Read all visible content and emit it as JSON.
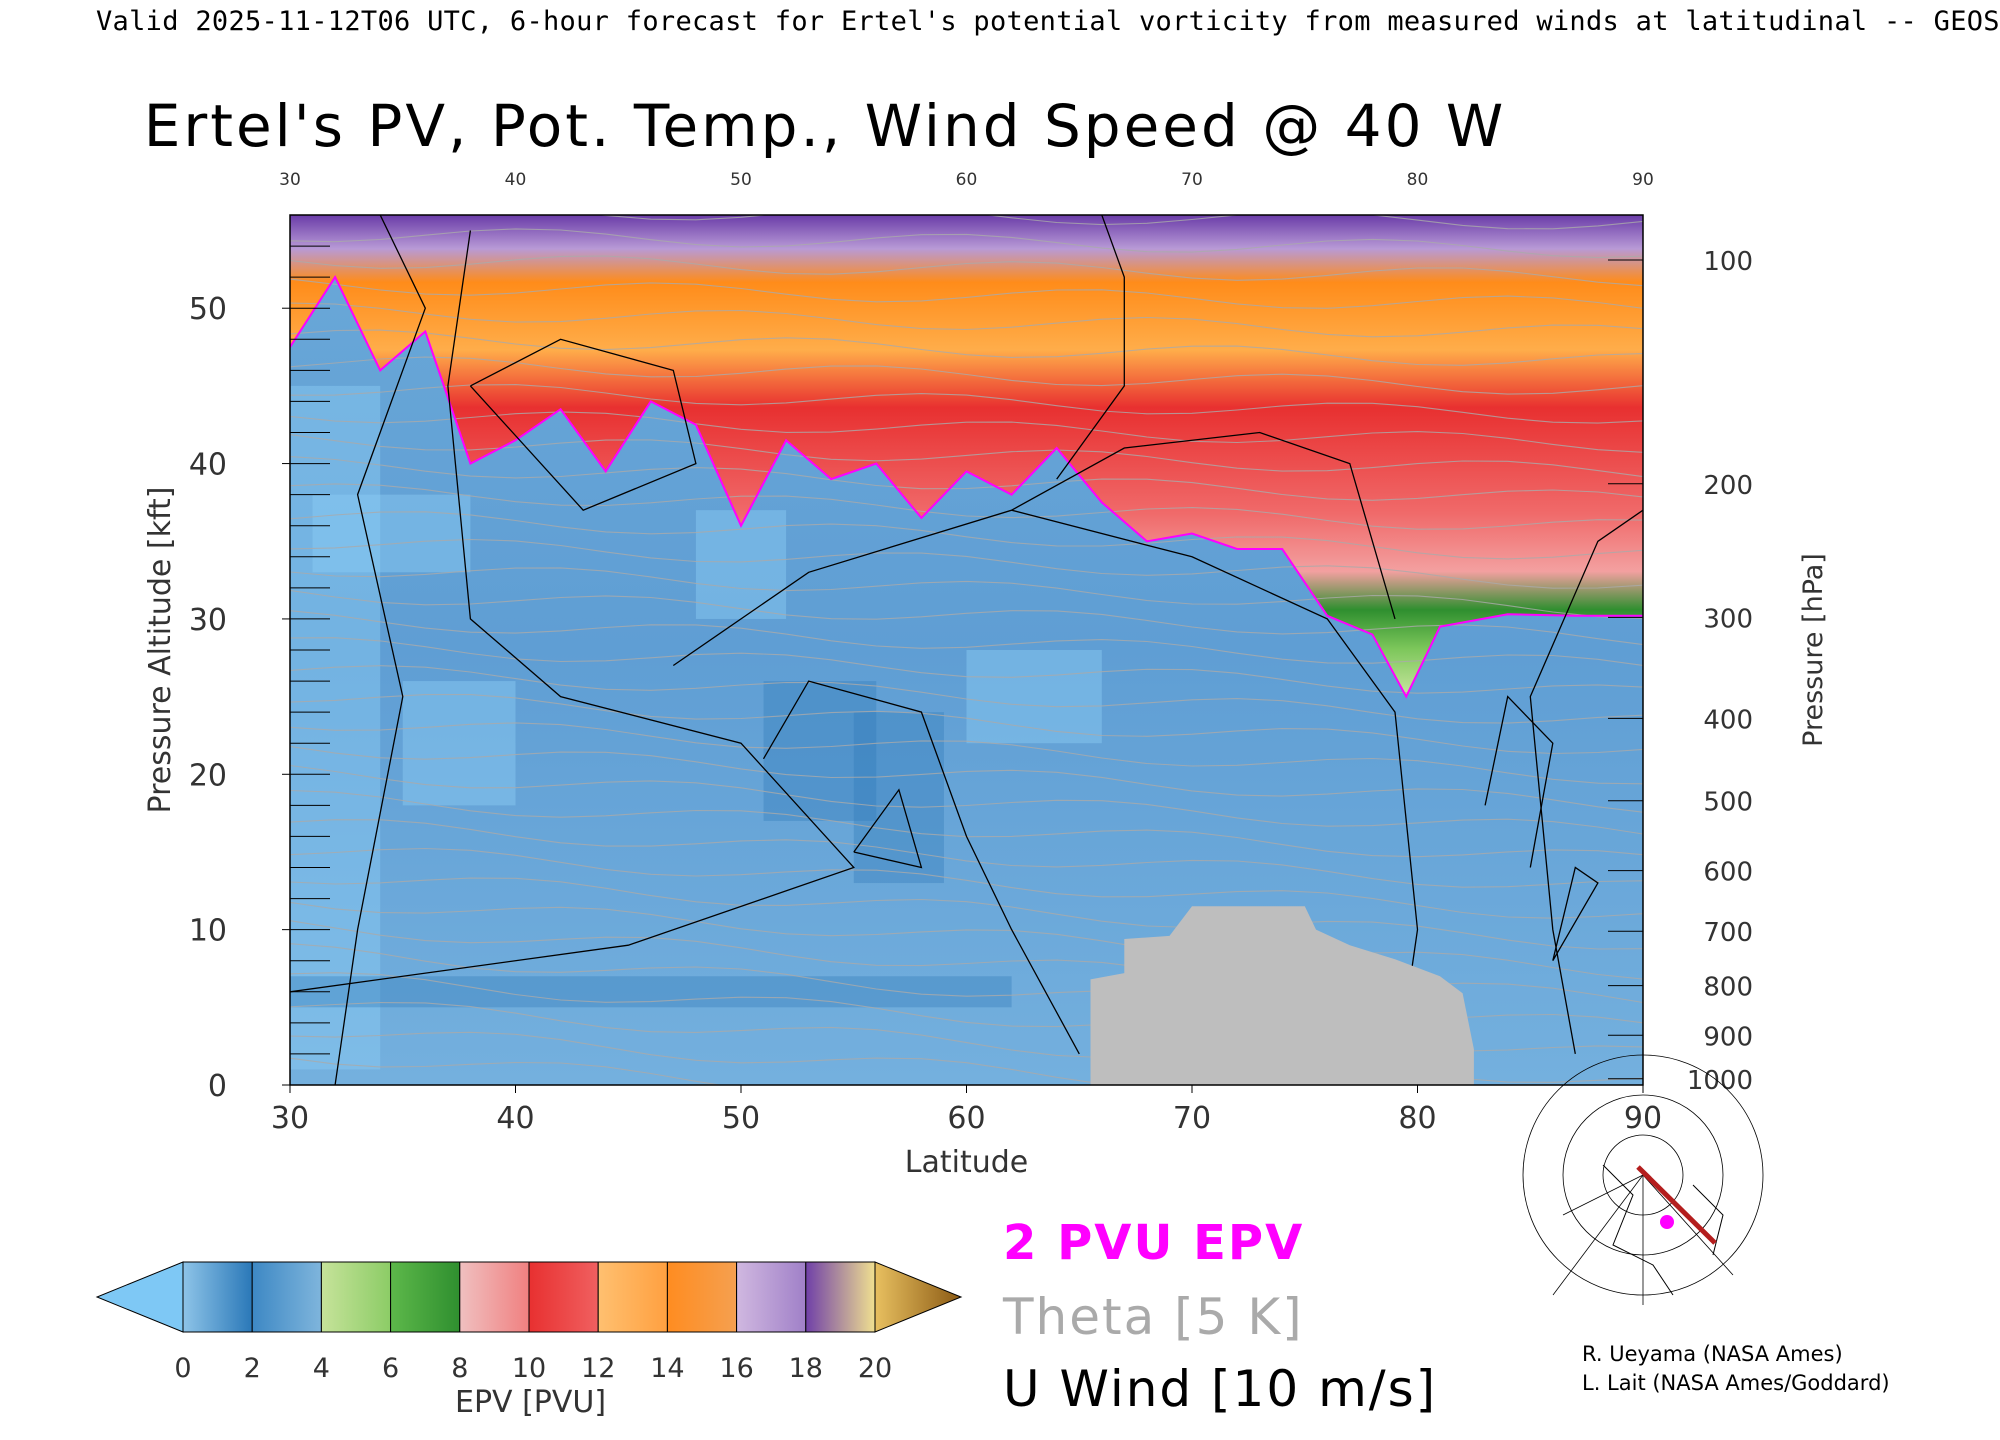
{
  "header": {
    "text": "Valid 2025-11-12T06 UTC, 6-hour forecast for Ertel's potential vorticity from measured winds at latitudinal -- GEOS"
  },
  "chart_data": {
    "type": "heatmap",
    "title": "Ertel's PV, Pot. Temp., Wind Speed @ 40 W",
    "xlabel": "Latitude",
    "ylabel": "Pressure Altitude [kft]",
    "y2label": "Pressure [hPa]",
    "xlim": [
      30,
      90
    ],
    "ylim": [
      0,
      56
    ],
    "x_ticks": [
      30,
      40,
      50,
      60,
      70,
      80,
      90
    ],
    "top_ticks": [
      "30",
      "40",
      "50",
      "60",
      "70",
      "80",
      "90"
    ],
    "y_ticks": [
      0,
      10,
      20,
      30,
      40,
      50
    ],
    "right_ticks": [
      {
        "label": "100",
        "kft": 53.1
      },
      {
        "label": "200",
        "kft": 38.7
      },
      {
        "label": "300",
        "kft": 30.1
      },
      {
        "label": "400",
        "kft": 23.6
      },
      {
        "label": "500",
        "kft": 18.3
      },
      {
        "label": "600",
        "kft": 13.8
      },
      {
        "label": "700",
        "kft": 9.9
      },
      {
        "label": "800",
        "kft": 6.4
      },
      {
        "label": "900",
        "kft": 3.2
      },
      {
        "label": "1000",
        "kft": 0.4
      }
    ],
    "colorbar": {
      "label": "EPV [PVU]",
      "ticks": [
        "0",
        "2",
        "4",
        "6",
        "8",
        "10",
        "12",
        "14",
        "16",
        "18",
        "20"
      ],
      "under_color": "#7ec8f5",
      "over_color": "#8b5a14",
      "bins": [
        [
          "#8ec4e8",
          "#2a78b8"
        ],
        [
          "#3d88c4",
          "#7fb5dc"
        ],
        [
          "#c6e39a",
          "#8ccc66"
        ],
        [
          "#5db84a",
          "#2f8f2f"
        ],
        [
          "#f0c0c0",
          "#f08080"
        ],
        [
          "#e83030",
          "#f06060"
        ],
        [
          "#ffc070",
          "#ffa040"
        ],
        [
          "#ff8c20",
          "#f5a050"
        ],
        [
          "#d0b8e0",
          "#a080c8"
        ],
        [
          "#7040a8",
          "#f0e090"
        ],
        [
          "#f8f0a0",
          "#e8c060"
        ]
      ]
    },
    "pv_2_tropopause_kft": [
      [
        30,
        47.5
      ],
      [
        32,
        52
      ],
      [
        34,
        46
      ],
      [
        36,
        48.5
      ],
      [
        38,
        40
      ],
      [
        40,
        41.5
      ],
      [
        42,
        43.5
      ],
      [
        44,
        39.5
      ],
      [
        46,
        44
      ],
      [
        48,
        42.5
      ],
      [
        50,
        36
      ],
      [
        52,
        41.5
      ],
      [
        54,
        39
      ],
      [
        56,
        40
      ],
      [
        58,
        36.5
      ],
      [
        60,
        39.5
      ],
      [
        62,
        38
      ],
      [
        64,
        41
      ],
      [
        66,
        37.5
      ],
      [
        68,
        35
      ],
      [
        70,
        35.5
      ],
      [
        72,
        34.5
      ],
      [
        74,
        34.5
      ],
      [
        76,
        30.2
      ],
      [
        78,
        29
      ],
      [
        79.5,
        25
      ],
      [
        81,
        29.5
      ],
      [
        84,
        30.3
      ],
      [
        87,
        30.2
      ],
      [
        90,
        30.2
      ]
    ],
    "surface_mask": [
      [
        65.5,
        2.3
      ],
      [
        65.5,
        6.8
      ],
      [
        67,
        7.2
      ],
      [
        67,
        9.4
      ],
      [
        69,
        9.6
      ],
      [
        70,
        11.5
      ],
      [
        75,
        11.5
      ],
      [
        75.5,
        10
      ],
      [
        77,
        9
      ],
      [
        79,
        8.1
      ],
      [
        81,
        7
      ],
      [
        82,
        5.9
      ],
      [
        82.5,
        2.3
      ]
    ],
    "legend": [
      "2 PVU EPV",
      "Theta [5 K]",
      "U Wind [10 m/s]"
    ]
  },
  "colors": {
    "pv_contour": "#ff00ff",
    "theta_contour": "#aaaaaa",
    "wind_contour": "#000000",
    "terrain": "#bebebe"
  },
  "credits": [
    "R. Ueyama (NASA Ames)",
    "L. Lait (NASA Ames/Goddard)"
  ]
}
